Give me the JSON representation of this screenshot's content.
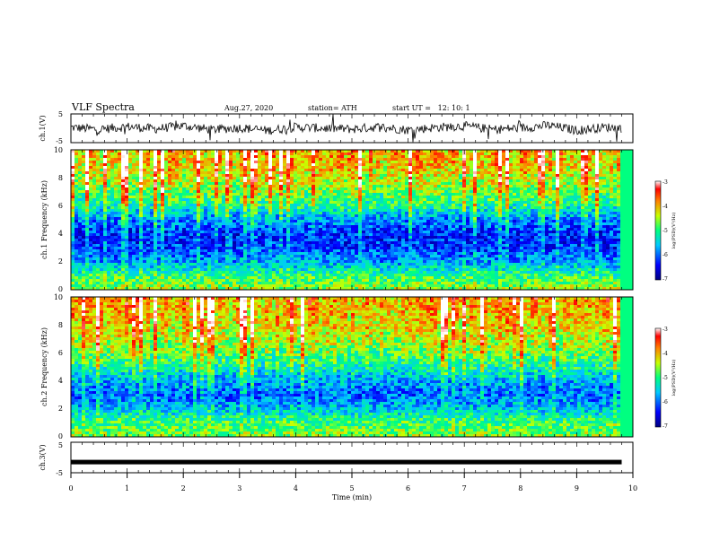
{
  "header": {
    "title": "VLF Spectra",
    "date": "Aug.27, 2020",
    "station": "station= ATH",
    "start": "start UT =   12: 10: 1"
  },
  "chart_data": [
    {
      "type": "line",
      "panel": "ch1-waveform",
      "ylabel": "ch.1(V)",
      "ylim": [
        -5,
        5
      ],
      "yticks": [
        "5",
        "-5"
      ],
      "xlim": [
        0,
        10
      ],
      "x": [
        0.0,
        0.5,
        1.0,
        1.5,
        2.0,
        2.5,
        3.0,
        3.5,
        4.0,
        4.5,
        5.0,
        5.5,
        6.0,
        6.5,
        7.0,
        7.5,
        8.0,
        8.5,
        9.0,
        9.5,
        9.8
      ],
      "y": [
        0.3,
        -0.4,
        0.6,
        -0.2,
        0.9,
        -0.5,
        0.2,
        -0.8,
        0.4,
        0.0,
        -0.3,
        0.5,
        -0.6,
        0.3,
        0.8,
        -0.4,
        0.1,
        1.0,
        -0.7,
        0.4,
        0.0
      ],
      "y_range_note": "noisy waveform, roughly -3 to 3 V"
    },
    {
      "type": "heatmap",
      "panel": "ch1-spectrogram",
      "ylabel": "ch.1 Frequency (kHz)",
      "ylim": [
        0,
        10
      ],
      "yticks": [
        "0",
        "2",
        "4",
        "6",
        "8",
        "10"
      ],
      "xlim": [
        0,
        9.8
      ],
      "colorbar": {
        "label": "log(PSD)(V²/Hz)",
        "range": [
          -7,
          -3
        ],
        "ticks": [
          "-3",
          "-4",
          "-5",
          "-6",
          "-7"
        ]
      },
      "frequency_profile": {
        "freq_kHz": [
          0,
          1,
          2,
          3,
          4,
          5,
          6,
          7,
          8,
          9,
          10
        ],
        "typical_log_psd": [
          -4.5,
          -5.0,
          -5.8,
          -6.3,
          -6.4,
          -6.0,
          -5.3,
          -4.9,
          -4.6,
          -4.4,
          -4.3
        ]
      }
    },
    {
      "type": "heatmap",
      "panel": "ch2-spectrogram",
      "ylabel": "ch.2 Frequency (kHz)",
      "ylim": [
        0,
        10
      ],
      "yticks": [
        "0",
        "2",
        "4",
        "6",
        "8",
        "10"
      ],
      "xlim": [
        0,
        9.8
      ],
      "colorbar": {
        "label": "log(PSD)(V²/Hz)",
        "range": [
          -7,
          -3
        ],
        "ticks": [
          "-3",
          "-4",
          "-5",
          "-6",
          "-7"
        ]
      },
      "frequency_profile": {
        "freq_kHz": [
          0,
          1,
          2,
          3,
          4,
          5,
          6,
          7,
          8,
          9,
          10
        ],
        "typical_log_psd": [
          -4.6,
          -4.9,
          -5.6,
          -6.1,
          -5.8,
          -5.3,
          -4.9,
          -4.6,
          -4.4,
          -4.3,
          -4.2
        ]
      }
    },
    {
      "type": "line",
      "panel": "ch3-waveform",
      "ylabel": "ch.3(V)",
      "ylim": [
        -5,
        5
      ],
      "yticks": [
        "5",
        "-5"
      ],
      "xlim": [
        0,
        10
      ],
      "xlabel": "Time (min)",
      "xticks": [
        "0",
        "1",
        "2",
        "3",
        "4",
        "5",
        "6",
        "7",
        "8",
        "9",
        "10"
      ],
      "x": [
        0,
        9.8
      ],
      "y": [
        -1.5,
        -1.5
      ]
    }
  ]
}
